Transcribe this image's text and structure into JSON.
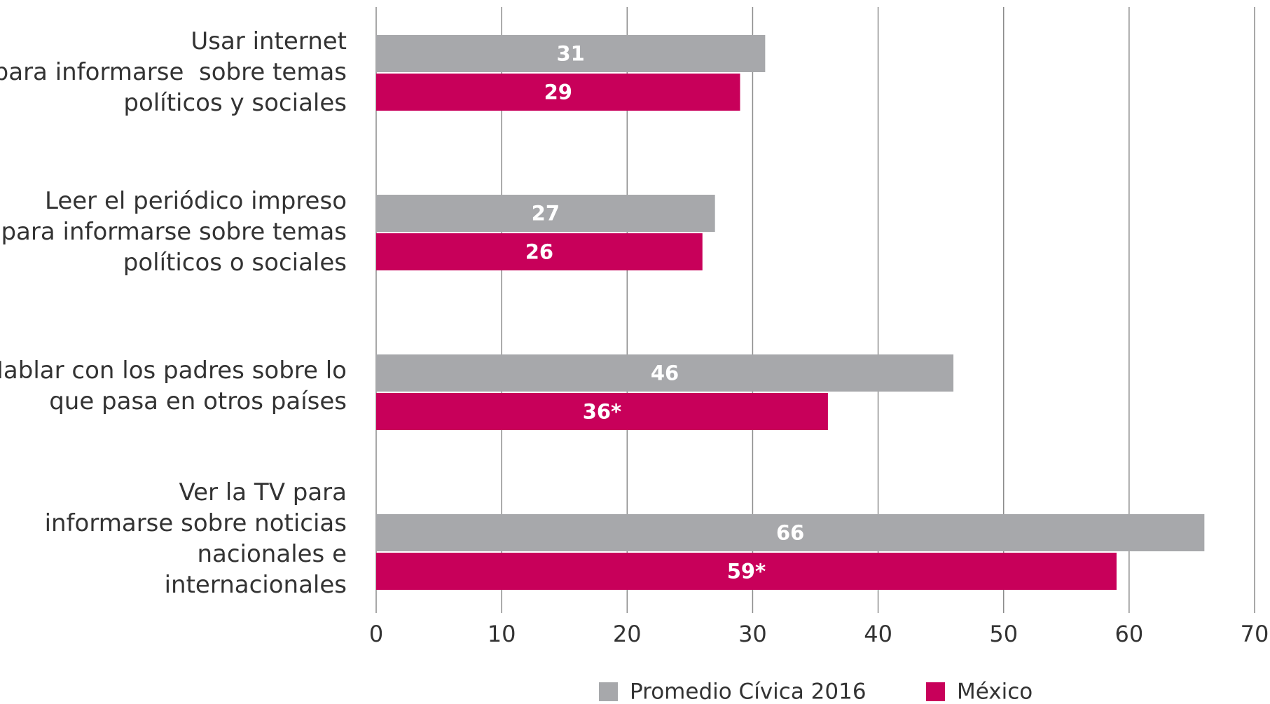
{
  "chart_data": {
    "type": "bar",
    "orientation": "horizontal",
    "categories": [
      "Usar internet\npara informarse  sobre temas\npolíticos y sociales",
      "Leer el periódico impreso\npara informarse sobre temas\npolíticos o sociales",
      "Hablar con los padres sobre lo\nque pasa en otros países",
      "Ver la TV para\ninformarse sobre noticias\nnacionales e\ninternacionales"
    ],
    "series": [
      {
        "name": "Promedio Cívica 2016",
        "color": "#a7a8ab",
        "values": [
          31,
          27,
          46,
          66
        ]
      },
      {
        "name": "México",
        "color": "#c8005a",
        "values": [
          29,
          26,
          36,
          59
        ],
        "value_labels": [
          "29",
          "26",
          "36*",
          "59*"
        ]
      }
    ],
    "xlim": [
      0,
      70
    ],
    "xticks": [
      0,
      10,
      20,
      30,
      40,
      50,
      60,
      70
    ],
    "grid": true,
    "legend": "bottom"
  }
}
